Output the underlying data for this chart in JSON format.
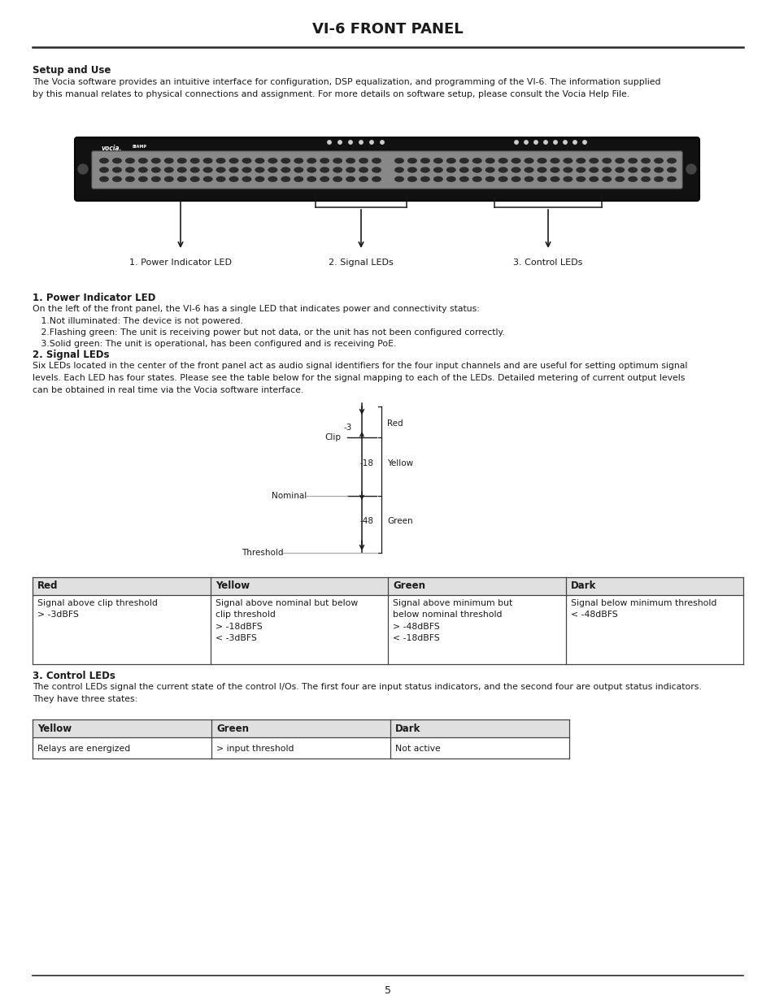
{
  "title": "VI-6 FRONT PANEL",
  "bg_color": "#ffffff",
  "text_color": "#1a1a1a",
  "section_setup_heading": "Setup and Use",
  "section_setup_body": "The Vocia software provides an intuitive interface for configuration, DSP equalization, and programming of the VI-6. The information supplied\nby this manual relates to physical connections and assignment. For more details on software setup, please consult the Vocia Help File.",
  "label1": "1. Power Indicator LED",
  "label2": "2. Signal LEDs",
  "label3": "3. Control LEDs",
  "section1_heading": "1. Power Indicator LED",
  "section1_body": "On the left of the front panel, the VI-6 has a single LED that indicates power and connectivity status:",
  "section1_items": [
    "   1.Not illuminated: The device is not powered.",
    "   2.Flashing green: The unit is receiving power but not data, or the unit has not been configured correctly.",
    "   3.Solid green: The unit is operational, has been configured and is receiving PoE."
  ],
  "section2_heading": "2. Signal LEDs",
  "section2_body": "Six LEDs located in the center of the front panel act as audio signal identifiers for the four input channels and are useful for setting optimum signal\nlevels. Each LED has four states. Please see the table below for the signal mapping to each of the LEDs. Detailed metering of current output levels\ncan be obtained in real time via the Vocia software interface.",
  "table1_headers": [
    "Red",
    "Yellow",
    "Green",
    "Dark"
  ],
  "table1_row": [
    "Signal above clip threshold\n> -3dBFS",
    "Signal above nominal but below\nclip threshold\n> -18dBFS\n< -3dBFS",
    "Signal above minimum but\nbelow nominal threshold\n> -48dBFS\n< -18dBFS",
    "Signal below minimum threshold\n< -48dBFS"
  ],
  "section3_heading": "3. Control LEDs",
  "section3_body": "The control LEDs signal the current state of the control I/Os. The first four are input status indicators, and the second four are output status indicators.\nThey have three states:",
  "table2_headers": [
    "Yellow",
    "Green",
    "Dark"
  ],
  "table2_row": [
    "Relays are energized",
    "> input threshold",
    "Not active"
  ],
  "page_number": "5"
}
